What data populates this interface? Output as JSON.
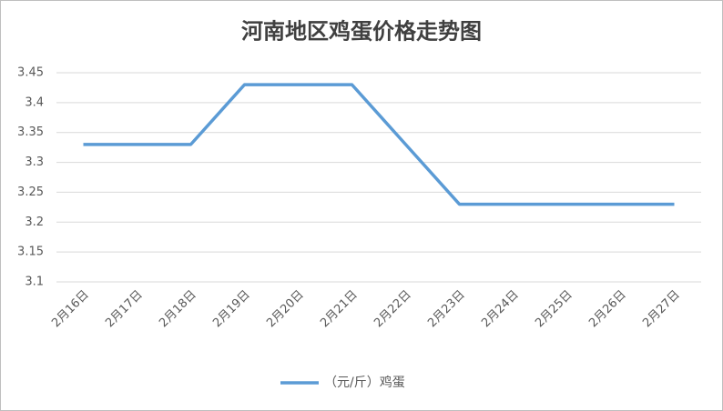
{
  "chart_data": {
    "type": "line",
    "title": "河南地区鸡蛋价格走势图",
    "categories": [
      "2月16日",
      "2月17日",
      "2月18日",
      "2月19日",
      "2月20日",
      "2月21日",
      "2月22日",
      "2月23日",
      "2月24日",
      "2月25日",
      "2月26日",
      "2月27日"
    ],
    "series": [
      {
        "name": "（元/斤）鸡蛋",
        "color": "#5b9bd5",
        "values": [
          3.33,
          3.33,
          3.33,
          3.43,
          3.43,
          3.43,
          3.33,
          3.23,
          3.23,
          3.23,
          3.23,
          3.23
        ]
      }
    ],
    "ylim": [
      3.1,
      3.45
    ],
    "yticks": [
      3.1,
      3.15,
      3.2,
      3.25,
      3.3,
      3.35,
      3.4,
      3.45
    ],
    "grid": true,
    "legend": "bottom"
  }
}
